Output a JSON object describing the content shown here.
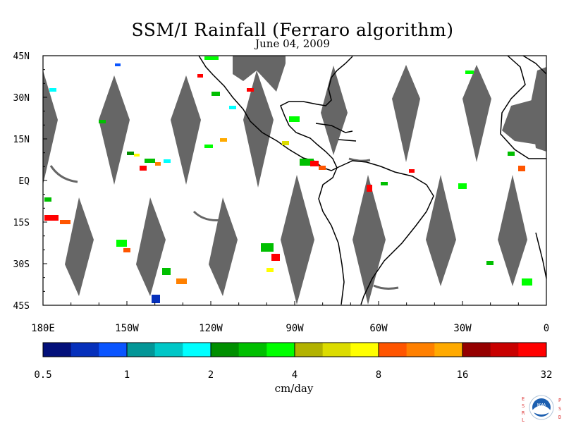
{
  "title": "SSM/I Rainfall (Ferraro algorithm)",
  "subtitle": "June 04, 2009",
  "lat_labels": [
    "45N",
    "30N",
    "15N",
    "EQ",
    "15S",
    "30S",
    "45S"
  ],
  "lon_labels": [
    "180E",
    "150W",
    "120W",
    "90W",
    "60W",
    "30W",
    "0"
  ],
  "colorbar": {
    "colors": [
      "#03107a",
      "#0630bb",
      "#0a55ff",
      "#039697",
      "#00c7c7",
      "#00ffff",
      "#008f00",
      "#00bf00",
      "#00ff00",
      "#b2b200",
      "#dcdc00",
      "#ffff00",
      "#ff5500",
      "#ff8000",
      "#ffaa00",
      "#950000",
      "#c80000",
      "#ff0000"
    ],
    "tick_labels": [
      "0.5",
      "1",
      "2",
      "4",
      "8",
      "16",
      "32"
    ],
    "unit": "cm/day"
  },
  "logo": {
    "left_letters": "ESRL",
    "right_letters": "PSD",
    "center_text": "NOAA"
  }
}
